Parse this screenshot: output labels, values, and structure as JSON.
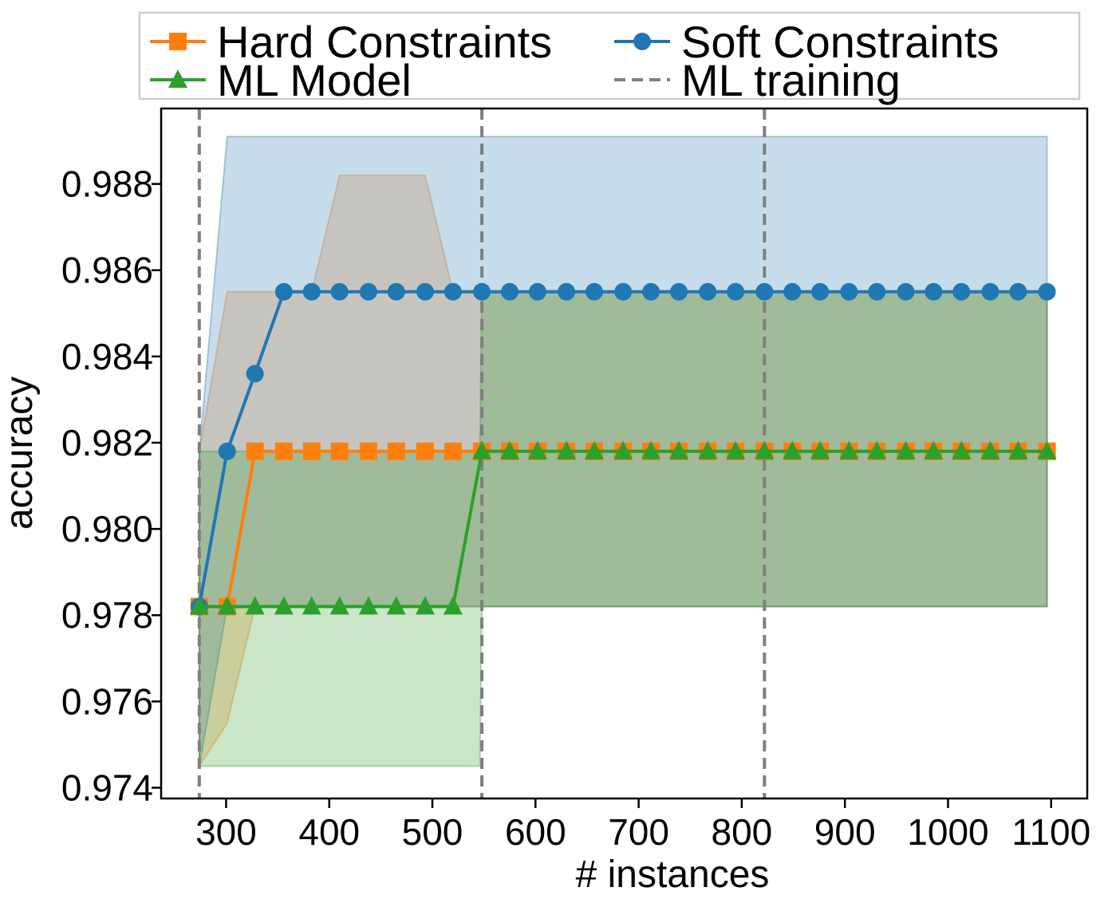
{
  "chart_data": {
    "type": "line",
    "xlabel": "# instances",
    "ylabel": "accuracy",
    "xlim": [
      237,
      1135
    ],
    "ylim": [
      0.97375,
      0.98975
    ],
    "xticks": [
      300,
      400,
      500,
      600,
      700,
      800,
      900,
      1000,
      1100
    ],
    "yticks": [
      0.974,
      0.976,
      0.978,
      0.98,
      0.982,
      0.984,
      0.986,
      0.988
    ],
    "ytick_labels": [
      "0.974",
      "0.976",
      "0.978",
      "0.980",
      "0.982",
      "0.984",
      "0.986",
      "0.988"
    ],
    "grid": false,
    "legend_position": "top",
    "vlines": {
      "name": "ML training",
      "x": [
        274,
        548,
        822
      ],
      "color": "#7f7f7f",
      "style": "dashed"
    },
    "series": [
      {
        "name": "Hard Constraints",
        "color": "#ff7f0e",
        "marker": "square",
        "x": [
          274,
          301,
          328,
          356,
          383,
          410,
          438,
          465,
          493,
          520,
          548,
          575,
          602,
          630,
          657,
          685,
          712,
          739,
          767,
          794,
          822,
          849,
          876,
          904,
          931,
          959,
          986,
          1013,
          1041,
          1068,
          1096
        ],
        "values": [
          0.9782,
          0.9782,
          0.9818,
          0.9818,
          0.9818,
          0.9818,
          0.9818,
          0.9818,
          0.9818,
          0.9818,
          0.9818,
          0.9818,
          0.9818,
          0.9818,
          0.9818,
          0.9818,
          0.9818,
          0.9818,
          0.9818,
          0.9818,
          0.9818,
          0.9818,
          0.9818,
          0.9818,
          0.9818,
          0.9818,
          0.9818,
          0.9818,
          0.9818,
          0.9818,
          0.9818
        ],
        "band_x": [
          274,
          301,
          328,
          383,
          410,
          438,
          465,
          493,
          520,
          548,
          1096
        ],
        "band_low": [
          0.9745,
          0.9755,
          0.9782,
          0.9782,
          0.9782,
          0.9782,
          0.9782,
          0.9782,
          0.9782,
          0.9782,
          0.9782
        ],
        "band_high": [
          0.9818,
          0.9855,
          0.9855,
          0.9855,
          0.9882,
          0.9882,
          0.9882,
          0.9882,
          0.9855,
          0.9855,
          0.9855
        ]
      },
      {
        "name": "Soft Constraints",
        "color": "#1f77b4",
        "marker": "circle",
        "x": [
          274,
          301,
          328,
          356,
          383,
          410,
          438,
          465,
          493,
          520,
          548,
          575,
          602,
          630,
          657,
          685,
          712,
          739,
          767,
          794,
          822,
          849,
          876,
          904,
          931,
          959,
          986,
          1013,
          1041,
          1068,
          1096
        ],
        "values": [
          0.9782,
          0.9818,
          0.9836,
          0.9855,
          0.9855,
          0.9855,
          0.9855,
          0.9855,
          0.9855,
          0.9855,
          0.9855,
          0.9855,
          0.9855,
          0.9855,
          0.9855,
          0.9855,
          0.9855,
          0.9855,
          0.9855,
          0.9855,
          0.9855,
          0.9855,
          0.9855,
          0.9855,
          0.9855,
          0.9855,
          0.9855,
          0.9855,
          0.9855,
          0.9855,
          0.9855
        ],
        "band_x": [
          274,
          301,
          1096
        ],
        "band_low": [
          0.9745,
          0.9782,
          0.9782
        ],
        "band_high": [
          0.9818,
          0.9891,
          0.9891
        ]
      },
      {
        "name": "ML Model",
        "color": "#2ca02c",
        "marker": "triangle",
        "x": [
          274,
          301,
          328,
          356,
          383,
          410,
          438,
          465,
          493,
          520,
          548,
          575,
          602,
          630,
          657,
          685,
          712,
          739,
          767,
          794,
          822,
          849,
          876,
          904,
          931,
          959,
          986,
          1013,
          1041,
          1068,
          1096
        ],
        "values": [
          0.9782,
          0.9782,
          0.9782,
          0.9782,
          0.9782,
          0.9782,
          0.9782,
          0.9782,
          0.9782,
          0.9782,
          0.9818,
          0.9818,
          0.9818,
          0.9818,
          0.9818,
          0.9818,
          0.9818,
          0.9818,
          0.9818,
          0.9818,
          0.9818,
          0.9818,
          0.9818,
          0.9818,
          0.9818,
          0.9818,
          0.9818,
          0.9818,
          0.9818,
          0.9818,
          0.9818
        ],
        "band_x": [
          274,
          438,
          465,
          493,
          520,
          546,
          548,
          1096
        ],
        "band_low": [
          0.9745,
          0.9745,
          0.9745,
          0.9745,
          0.9745,
          0.9745,
          0.9782,
          0.9782
        ],
        "band_high": [
          0.9818,
          0.9818,
          0.9818,
          0.9818,
          0.9818,
          0.9818,
          0.9855,
          0.9855
        ]
      }
    ],
    "legend": [
      {
        "label": "Hard Constraints",
        "color": "#ff7f0e",
        "marker": "square"
      },
      {
        "label": "Soft Constraints",
        "color": "#1f77b4",
        "marker": "circle"
      },
      {
        "label": "ML Model",
        "color": "#2ca02c",
        "marker": "triangle"
      },
      {
        "label": "ML training",
        "color": "#7f7f7f",
        "marker": "dashed-line"
      }
    ]
  }
}
